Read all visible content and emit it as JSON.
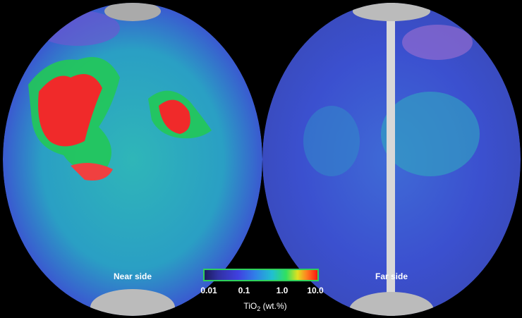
{
  "panels": [
    {
      "label": "Near side"
    },
    {
      "label": "Far side"
    }
  ],
  "colorbar": {
    "ticks": [
      "0.01",
      "0.1",
      "1.0",
      "10.0"
    ],
    "label": {
      "main": "TiO",
      "sub": "2",
      "unit": " (wt.%)"
    }
  }
}
